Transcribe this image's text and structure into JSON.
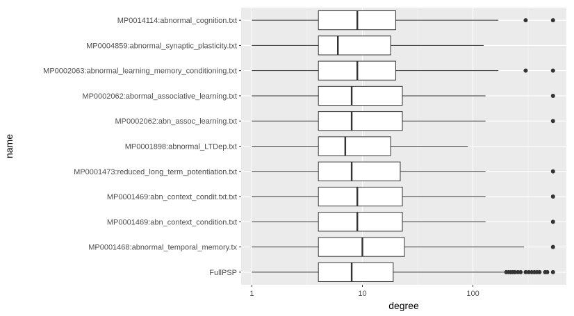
{
  "chart_data": {
    "type": "boxplot",
    "orientation": "horizontal",
    "xlabel": "degree",
    "ylabel": "name",
    "x_scale": "log10",
    "xlim": [
      0.8,
      700
    ],
    "x_ticks": [
      1,
      10,
      100
    ],
    "x_tick_labels": [
      "1",
      "10",
      "100"
    ],
    "grid": true,
    "legend": "none",
    "colors": {
      "panel_background": "#ebebeb",
      "grid_major": "#ffffff",
      "grid_minor": "#f5f5f5",
      "box_fill": "#ffffff",
      "box_stroke": "#333333",
      "outlier": "#333333",
      "tick_text": "#4d4d4d"
    },
    "categories": [
      "MP0014114:abnormal_cognition.txt",
      "MP0004859:abnormal_synaptic_plasticity.txt",
      "MP0002063:abnormal_learning_memory_conditioning.txt",
      "MP0002062:abormal_associative_learning.txt",
      "MP0002062:abn_assoc_learning.txt",
      "MP0001898:abnormal_LTDep.txt",
      "MP0001473:reduced_long_term_potentiation.txt",
      "MP0001469:abn_context_condit.txt.txt",
      "MP0001469:abn_context_condition.txt",
      "MP0001468:abnormal_temporal_memory.tx",
      "FullPSP"
    ],
    "boxes": [
      {
        "min": 1,
        "q1": 4,
        "median": 9,
        "q3": 20,
        "max": 170,
        "outliers": [
          300,
          530
        ]
      },
      {
        "min": 1,
        "q1": 4,
        "median": 6,
        "q3": 18,
        "max": 125,
        "outliers": []
      },
      {
        "min": 1,
        "q1": 4,
        "median": 9,
        "q3": 20,
        "max": 170,
        "outliers": [
          300,
          530
        ]
      },
      {
        "min": 1,
        "q1": 4,
        "median": 8,
        "q3": 23,
        "max": 130,
        "outliers": [
          530
        ]
      },
      {
        "min": 1,
        "q1": 4,
        "median": 8,
        "q3": 23,
        "max": 130,
        "outliers": [
          530
        ]
      },
      {
        "min": 1,
        "q1": 4,
        "median": 7,
        "q3": 18,
        "max": 90,
        "outliers": []
      },
      {
        "min": 1,
        "q1": 4,
        "median": 8,
        "q3": 22,
        "max": 130,
        "outliers": [
          530
        ]
      },
      {
        "min": 1,
        "q1": 4,
        "median": 9,
        "q3": 23,
        "max": 130,
        "outliers": [
          530
        ]
      },
      {
        "min": 1,
        "q1": 4,
        "median": 9,
        "q3": 23,
        "max": 130,
        "outliers": [
          530
        ]
      },
      {
        "min": 1,
        "q1": 4,
        "median": 10,
        "q3": 24,
        "max": 290,
        "outliers": [
          530
        ]
      },
      {
        "min": 1,
        "q1": 4,
        "median": 8,
        "q3": 19,
        "max": 190,
        "outliers": [
          200,
          210,
          220,
          230,
          240,
          255,
          270,
          300,
          320,
          340,
          360,
          380,
          400,
          450,
          470,
          530
        ]
      }
    ]
  }
}
